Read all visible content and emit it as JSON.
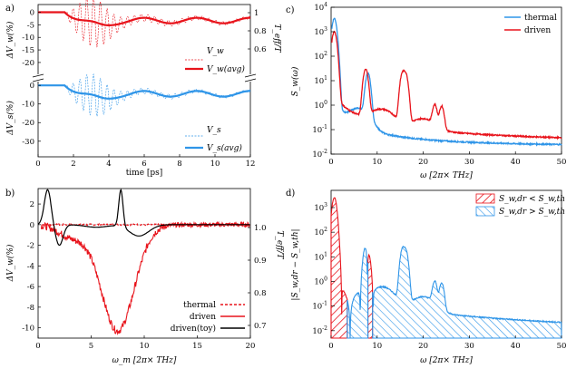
{
  "colors": {
    "red": "#e8131b",
    "blue": "#2f95e8",
    "black": "#000000"
  },
  "chart_data": [
    {
      "panel": "a)",
      "type": "line",
      "top": {
        "ylabel": "ΔV_w(%)",
        "ylabel_right": "T_eff/T",
        "yticks": [
          "0",
          "-5",
          "-10",
          "-15",
          "-20"
        ],
        "ylim": [
          -24,
          2
        ],
        "yticks_right": [
          "1",
          "0.8",
          "0.6"
        ],
        "series": [
          {
            "name": "V_w",
            "style": "dashed",
            "color": "red",
            "kind": "osc",
            "depth": 6,
            "amp": 8,
            "env_center": 3.0
          },
          {
            "name": "V_w(avg)",
            "style": "solid",
            "color": "red",
            "kind": "avg",
            "depth": 6,
            "min": -8
          }
        ]
      },
      "bottom": {
        "ylabel": "ΔV_s(%)",
        "yticks": [
          "0",
          "-10",
          "-20",
          "-30"
        ],
        "ylim": [
          -34,
          3
        ],
        "series": [
          {
            "name": "V_s",
            "style": "dashed",
            "color": "blue",
            "kind": "osc",
            "depth": 6,
            "amp": 9,
            "env_center": 3.0
          },
          {
            "name": "V_s(avg)",
            "style": "solid",
            "color": "blue",
            "kind": "avg",
            "depth": 6,
            "min": -11
          }
        ]
      },
      "xlabel": "time [ps]",
      "xticks": [
        "0",
        "2",
        "4",
        "6",
        "8",
        "10",
        "12"
      ],
      "xlim": [
        0,
        12
      ]
    },
    {
      "panel": "b)",
      "type": "line",
      "xlabel": "ω_m [2π× THz]",
      "ylabel": "ΔV_w(%)",
      "ylabel_right": "T_eff/T",
      "xticks": [
        "0",
        "5",
        "10",
        "15",
        "20"
      ],
      "xlim": [
        0,
        20
      ],
      "yticks": [
        "2",
        "0",
        "-2",
        "-4",
        "-6",
        "-8",
        "-10"
      ],
      "ylim": [
        -11,
        3.5
      ],
      "yticks_right": [
        "1.0",
        "0.9",
        "0.8",
        "0.7"
      ],
      "series": [
        {
          "name": "thermal",
          "style": "dashed",
          "color": "red"
        },
        {
          "name": "driven",
          "style": "solid",
          "color": "red",
          "min_value": -10.3,
          "min_at": 7.5
        },
        {
          "name": "driven(toy)",
          "style": "solid",
          "color": "black"
        }
      ]
    },
    {
      "panel": "c)",
      "type": "line",
      "yscale": "log",
      "xlabel": "ω [2π× THz]",
      "ylabel": "S_w(ω)",
      "xticks": [
        "0",
        "10",
        "20",
        "30",
        "40",
        "50"
      ],
      "xlim": [
        0,
        50
      ],
      "yticks": [
        "10^4",
        "10^3",
        "10^2",
        "10^1",
        "10^0",
        "10^-1",
        "10^-2"
      ],
      "ylim": [
        0.01,
        10000
      ],
      "series": [
        {
          "name": "thermal",
          "color": "blue",
          "peaks": [
            [
              0.7,
              3500
            ],
            [
              8.0,
              20
            ]
          ]
        },
        {
          "name": "driven",
          "color": "red",
          "peaks": [
            [
              0.7,
              1000
            ],
            [
              7.5,
              30
            ],
            [
              15.5,
              20
            ],
            [
              16.2,
              18
            ],
            [
              22.5,
              0.9
            ],
            [
              24.0,
              0.8
            ]
          ]
        }
      ]
    },
    {
      "panel": "d)",
      "type": "area",
      "yscale": "log",
      "xlabel": "ω [2π× THz]",
      "ylabel": "|S_w,dr − S_w,th|",
      "xticks": [
        "0",
        "10",
        "20",
        "30",
        "40",
        "50"
      ],
      "xlim": [
        0,
        50
      ],
      "yticks": [
        "10^3",
        "10^2",
        "10^1",
        "10^0",
        "10^-1",
        "10^-2"
      ],
      "ylim": [
        0.005,
        5000
      ],
      "series": [
        {
          "name": "S_w,dr < S_w,th",
          "color": "red",
          "ranges": [
            [
              0,
              3.5
            ],
            [
              8.0,
              9.0
            ]
          ]
        },
        {
          "name": "S_w,dr > S_w,th",
          "color": "blue",
          "ranges": [
            [
              3.5,
              8.0
            ],
            [
              9.0,
              50
            ]
          ]
        }
      ]
    }
  ]
}
